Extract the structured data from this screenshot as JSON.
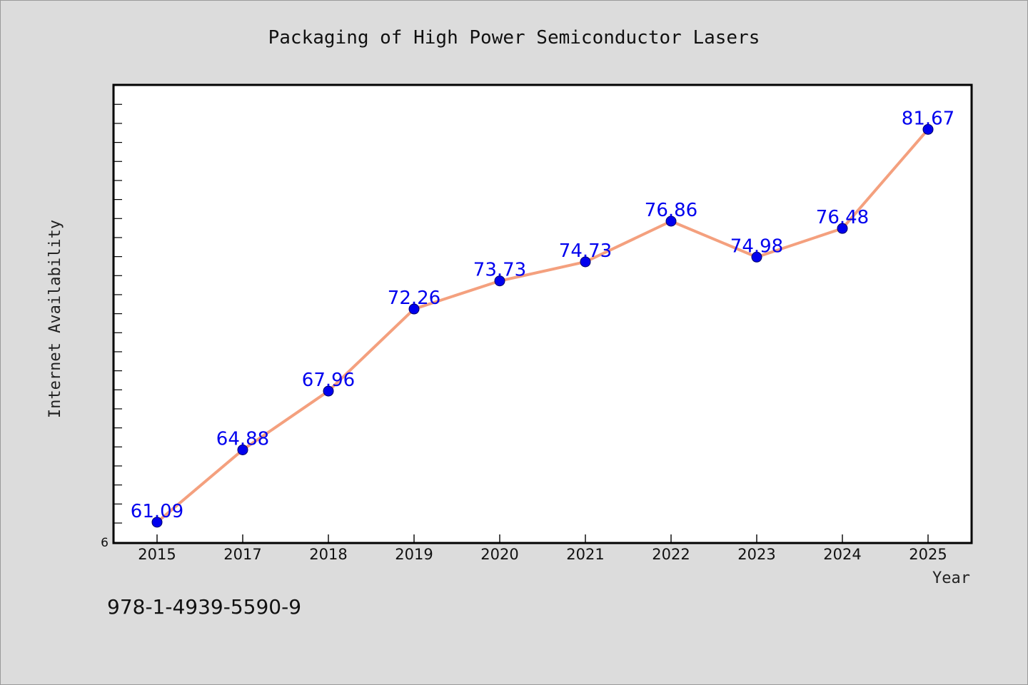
{
  "chart_data": {
    "type": "line",
    "title": "Packaging of High Power Semiconductor Lasers",
    "xlabel": "Year",
    "ylabel": "Internet Availability",
    "categories": [
      "2015",
      "2017",
      "2018",
      "2019",
      "2020",
      "2021",
      "2022",
      "2023",
      "2024",
      "2025"
    ],
    "series": [
      {
        "values": [
          61.09,
          64.88,
          67.96,
          72.26,
          73.73,
          74.73,
          76.86,
          74.98,
          76.48,
          81.67
        ],
        "labels": [
          "61.09",
          "64.88",
          "67.96",
          "72.26",
          "73.73",
          "74.73",
          "76.86",
          "74.98",
          "76.48",
          "81.67"
        ],
        "line_color": "#f4a07e",
        "marker_color": "#0000ee"
      }
    ],
    "y_tick_labels": [
      "6"
    ],
    "ylim": [
      60.0,
      84.0
    ],
    "grid": false,
    "legend": "none"
  },
  "footer": {
    "code": "978-1-4939-5590-9"
  },
  "colors": {
    "background": "#dcdcdc",
    "plot_background": "#ffffff",
    "line": "#f4a07e",
    "marker": "#0000ee",
    "data_label": "#0000ee"
  }
}
